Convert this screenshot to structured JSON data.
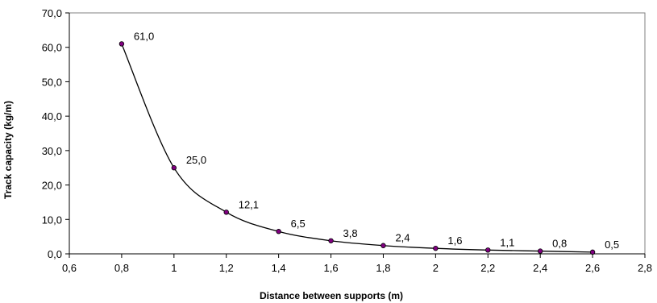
{
  "chart_data": {
    "type": "line",
    "x": [
      0.8,
      1.0,
      1.2,
      1.4,
      1.6,
      1.8,
      2.0,
      2.2,
      2.4,
      2.6
    ],
    "y": [
      61.0,
      25.0,
      12.1,
      6.5,
      3.8,
      2.4,
      1.6,
      1.1,
      0.8,
      0.5
    ],
    "point_labels": [
      "61,0",
      "25,0",
      "12,1",
      "6,5",
      "3,8",
      "2,4",
      "1,6",
      "1,1",
      "0,8",
      "0,5"
    ],
    "xlabel": "Distance between supports (m)",
    "ylabel": "Track capacity (kg/m)",
    "xlim": [
      0.6,
      2.8
    ],
    "ylim": [
      0,
      70
    ],
    "x_tick_labels": [
      "0,6",
      "0,8",
      "1",
      "1,2",
      "1,4",
      "1,6",
      "1,8",
      "2",
      "2,2",
      "2,4",
      "2,6",
      "2,8"
    ],
    "y_tick_labels": [
      "0,0",
      "10,0",
      "20,0",
      "30,0",
      "40,0",
      "50,0",
      "60,0",
      "70,0"
    ],
    "grid": false,
    "line_color": "#000000",
    "marker_color": "#800080"
  }
}
